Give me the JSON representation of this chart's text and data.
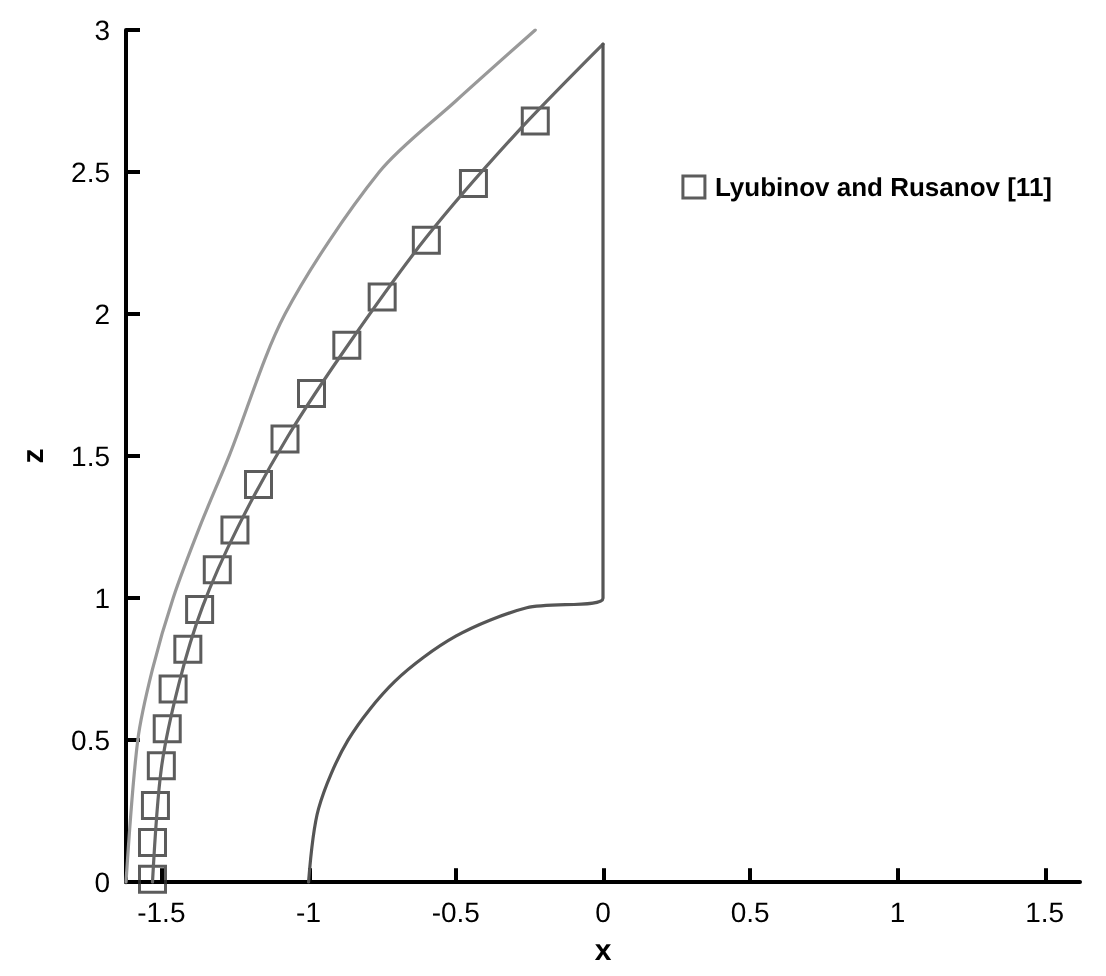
{
  "chart_data": {
    "type": "scatter",
    "xlabel": "x",
    "ylabel": "z",
    "xlim": [
      -1.62,
      1.62
    ],
    "ylim": [
      0,
      3
    ],
    "xticks": [
      -1.5,
      -1,
      -0.5,
      0,
      0.5,
      1,
      1.5
    ],
    "yticks": [
      0,
      0.5,
      1,
      1.5,
      2,
      2.5,
      3
    ],
    "grid": false,
    "legend": "top right",
    "marker": "square",
    "series": [
      {
        "type": "line",
        "color": "#999999",
        "marker": "none",
        "x": [
          -1.62,
          -1.58,
          -1.53,
          -1.46,
          -1.37,
          -1.27,
          -1.08,
          -0.76,
          -0.5,
          -0.23
        ],
        "values": [
          0,
          0.5,
          0.75,
          1,
          1.25,
          1.5,
          2,
          2.5,
          2.75,
          3
        ]
      },
      {
        "type": "line",
        "color": "#666666",
        "marker": "none",
        "x": [
          -1.53,
          -1.5,
          -1.44,
          -1.36,
          -1.24,
          -1.07,
          -0.86,
          -0.6,
          -0.3,
          0
        ],
        "values": [
          0,
          0.4,
          0.7,
          0.97,
          1.25,
          1.57,
          1.9,
          2.27,
          2.63,
          2.95
        ]
      },
      {
        "type": "line",
        "color": "#555555",
        "marker": "none",
        "x": [
          -1,
          -0.966,
          -0.866,
          -0.707,
          -0.5,
          -0.259,
          0,
          0
        ],
        "values": [
          0,
          0.259,
          0.5,
          0.707,
          0.866,
          0.966,
          1,
          2.95
        ]
      },
      {
        "name": "Lyubinov and Rusanov [11]",
        "color": "#333333",
        "x": [
          -0.23,
          -0.44,
          -0.6,
          -0.75,
          -0.87,
          -0.99,
          -1.08,
          -1.17,
          -1.25,
          -1.31,
          -1.37,
          -1.41,
          -1.46,
          -1.48,
          -1.5,
          -1.52,
          -1.53,
          -1.53
        ],
        "values": [
          2.68,
          2.46,
          2.26,
          2.06,
          1.89,
          1.72,
          1.56,
          1.4,
          1.24,
          1.1,
          0.96,
          0.82,
          0.68,
          0.54,
          0.41,
          0.27,
          0.14,
          0.01
        ]
      }
    ]
  }
}
